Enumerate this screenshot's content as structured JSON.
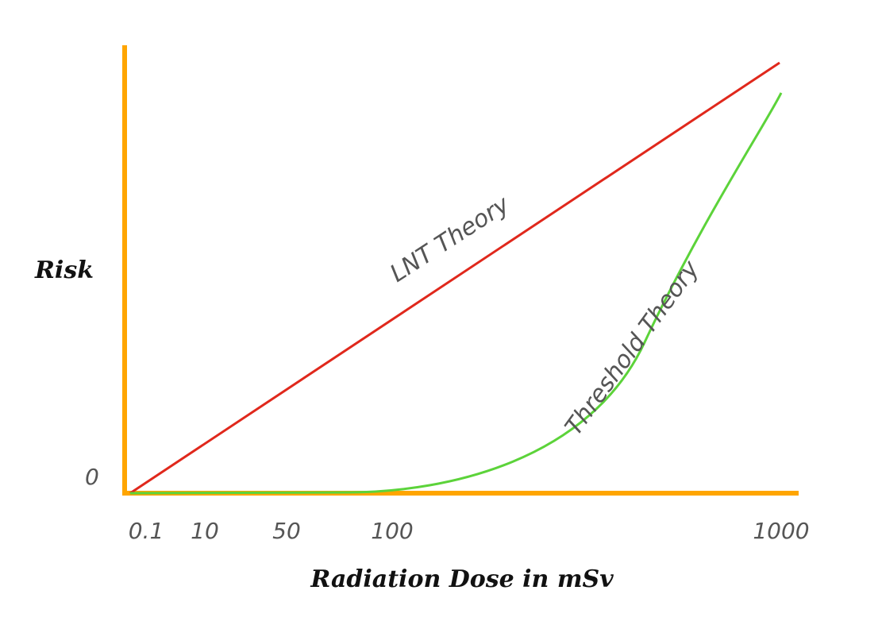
{
  "chart_data": {
    "type": "line",
    "xlabel": "Radiation Dose in mSv",
    "ylabel": "Risk",
    "x_ticks": [
      "0.1",
      "10",
      "50",
      "100",
      "1000"
    ],
    "y_ticks": [
      "0"
    ],
    "grid": false,
    "colors": {
      "axes": "#FFA500",
      "lnt": "#E0281C",
      "threshold": "#5CD33A",
      "labels": "#555555",
      "titles": "#111111"
    },
    "series": [
      {
        "name": "LNT Theory",
        "color": "#E0281C",
        "shape": "linear",
        "points": [
          [
            "0.1",
            0
          ],
          [
            "1000",
            1.0
          ]
        ]
      },
      {
        "name": "Threshold Theory",
        "color": "#5CD33A",
        "shape": "threshold-curve",
        "points": [
          [
            "0.1",
            0
          ],
          [
            "100",
            0
          ],
          [
            "1000",
            0.93
          ]
        ]
      }
    ]
  }
}
